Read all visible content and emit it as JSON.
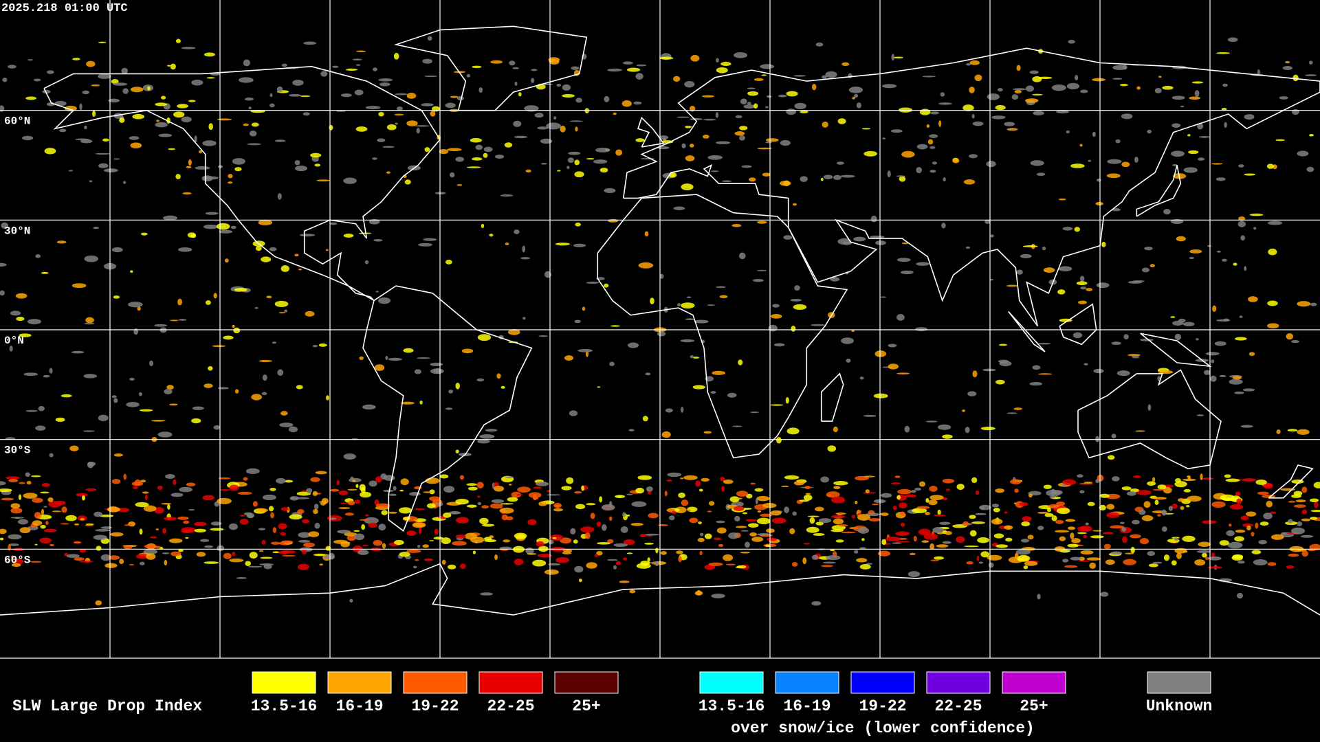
{
  "header": {
    "timestamp": "2025.218 01:00 UTC"
  },
  "map": {
    "lat_labels": [
      "60°N",
      "30°N",
      "0°N",
      "30°S",
      "60°S"
    ]
  },
  "legend": {
    "title": "SLW Large Drop Index",
    "groups": [
      {
        "items": [
          {
            "label": "13.5-16",
            "color": "#ffff00"
          },
          {
            "label": "16-19",
            "color": "#ffa500"
          },
          {
            "label": "19-22",
            "color": "#ff5a00"
          },
          {
            "label": "22-25",
            "color": "#e80000"
          },
          {
            "label": "25+",
            "color": "#5a0000"
          }
        ]
      },
      {
        "items": [
          {
            "label": "13.5-16",
            "color": "#00ffff"
          },
          {
            "label": "16-19",
            "color": "#0a82ff"
          },
          {
            "label": "19-22",
            "color": "#0000ff"
          },
          {
            "label": "22-25",
            "color": "#7000e0"
          },
          {
            "label": "25+",
            "color": "#c000d0"
          }
        ],
        "note": "over snow/ice (lower confidence)"
      },
      {
        "items": [
          {
            "label": "Unknown",
            "color": "#808080"
          }
        ]
      }
    ]
  }
}
